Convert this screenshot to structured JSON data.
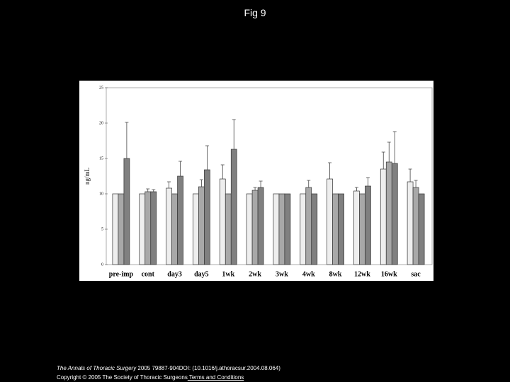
{
  "title": "Fig 9",
  "chart_data": {
    "type": "bar",
    "y_label": "ng/mL",
    "categories": [
      "pre-imp",
      "cont",
      "day3",
      "day5",
      "1wk",
      "2wk",
      "3wk",
      "4wk",
      "8wk",
      "12wk",
      "16wk",
      "sac"
    ],
    "series": [
      {
        "color": "#eeeeee",
        "values": [
          10,
          10,
          10.8,
          10,
          12.1,
          10,
          10,
          10,
          12.1,
          10.4,
          13.5,
          11.7
        ],
        "errors": [
          null,
          null,
          0.9,
          null,
          2,
          null,
          null,
          null,
          2.3,
          0.5,
          2.4,
          1.8
        ]
      },
      {
        "color": "#a8a8a8",
        "values": [
          10,
          10.3,
          10,
          11,
          10,
          10.5,
          10,
          10.9,
          10,
          10,
          14.5,
          10.9
        ],
        "errors": [
          null,
          0.4,
          null,
          1,
          null,
          0.4,
          null,
          1,
          null,
          null,
          2.8,
          1
        ]
      },
      {
        "color": "#808080",
        "values": [
          15,
          10.3,
          12.5,
          13.4,
          16.3,
          10.9,
          10,
          10,
          10,
          11.1,
          14.3,
          10
        ],
        "errors": [
          5.1,
          0.3,
          2.1,
          3.4,
          4.2,
          0.9,
          null,
          null,
          null,
          1.2,
          4.5,
          null
        ]
      }
    ],
    "ylim": [
      0,
      25
    ],
    "yticks": [
      0,
      5,
      10,
      15,
      20,
      25
    ],
    "grid": false
  },
  "footer": {
    "journal": "The Annals of Thoracic Surgery",
    "citation": " 2005 79887-904DOI: (10.1016/j.athoracsur.2004.08.064)",
    "copyright": "Copyright © 2005 The Society of Thoracic Surgeons",
    "link": " Terms and Conditions"
  }
}
